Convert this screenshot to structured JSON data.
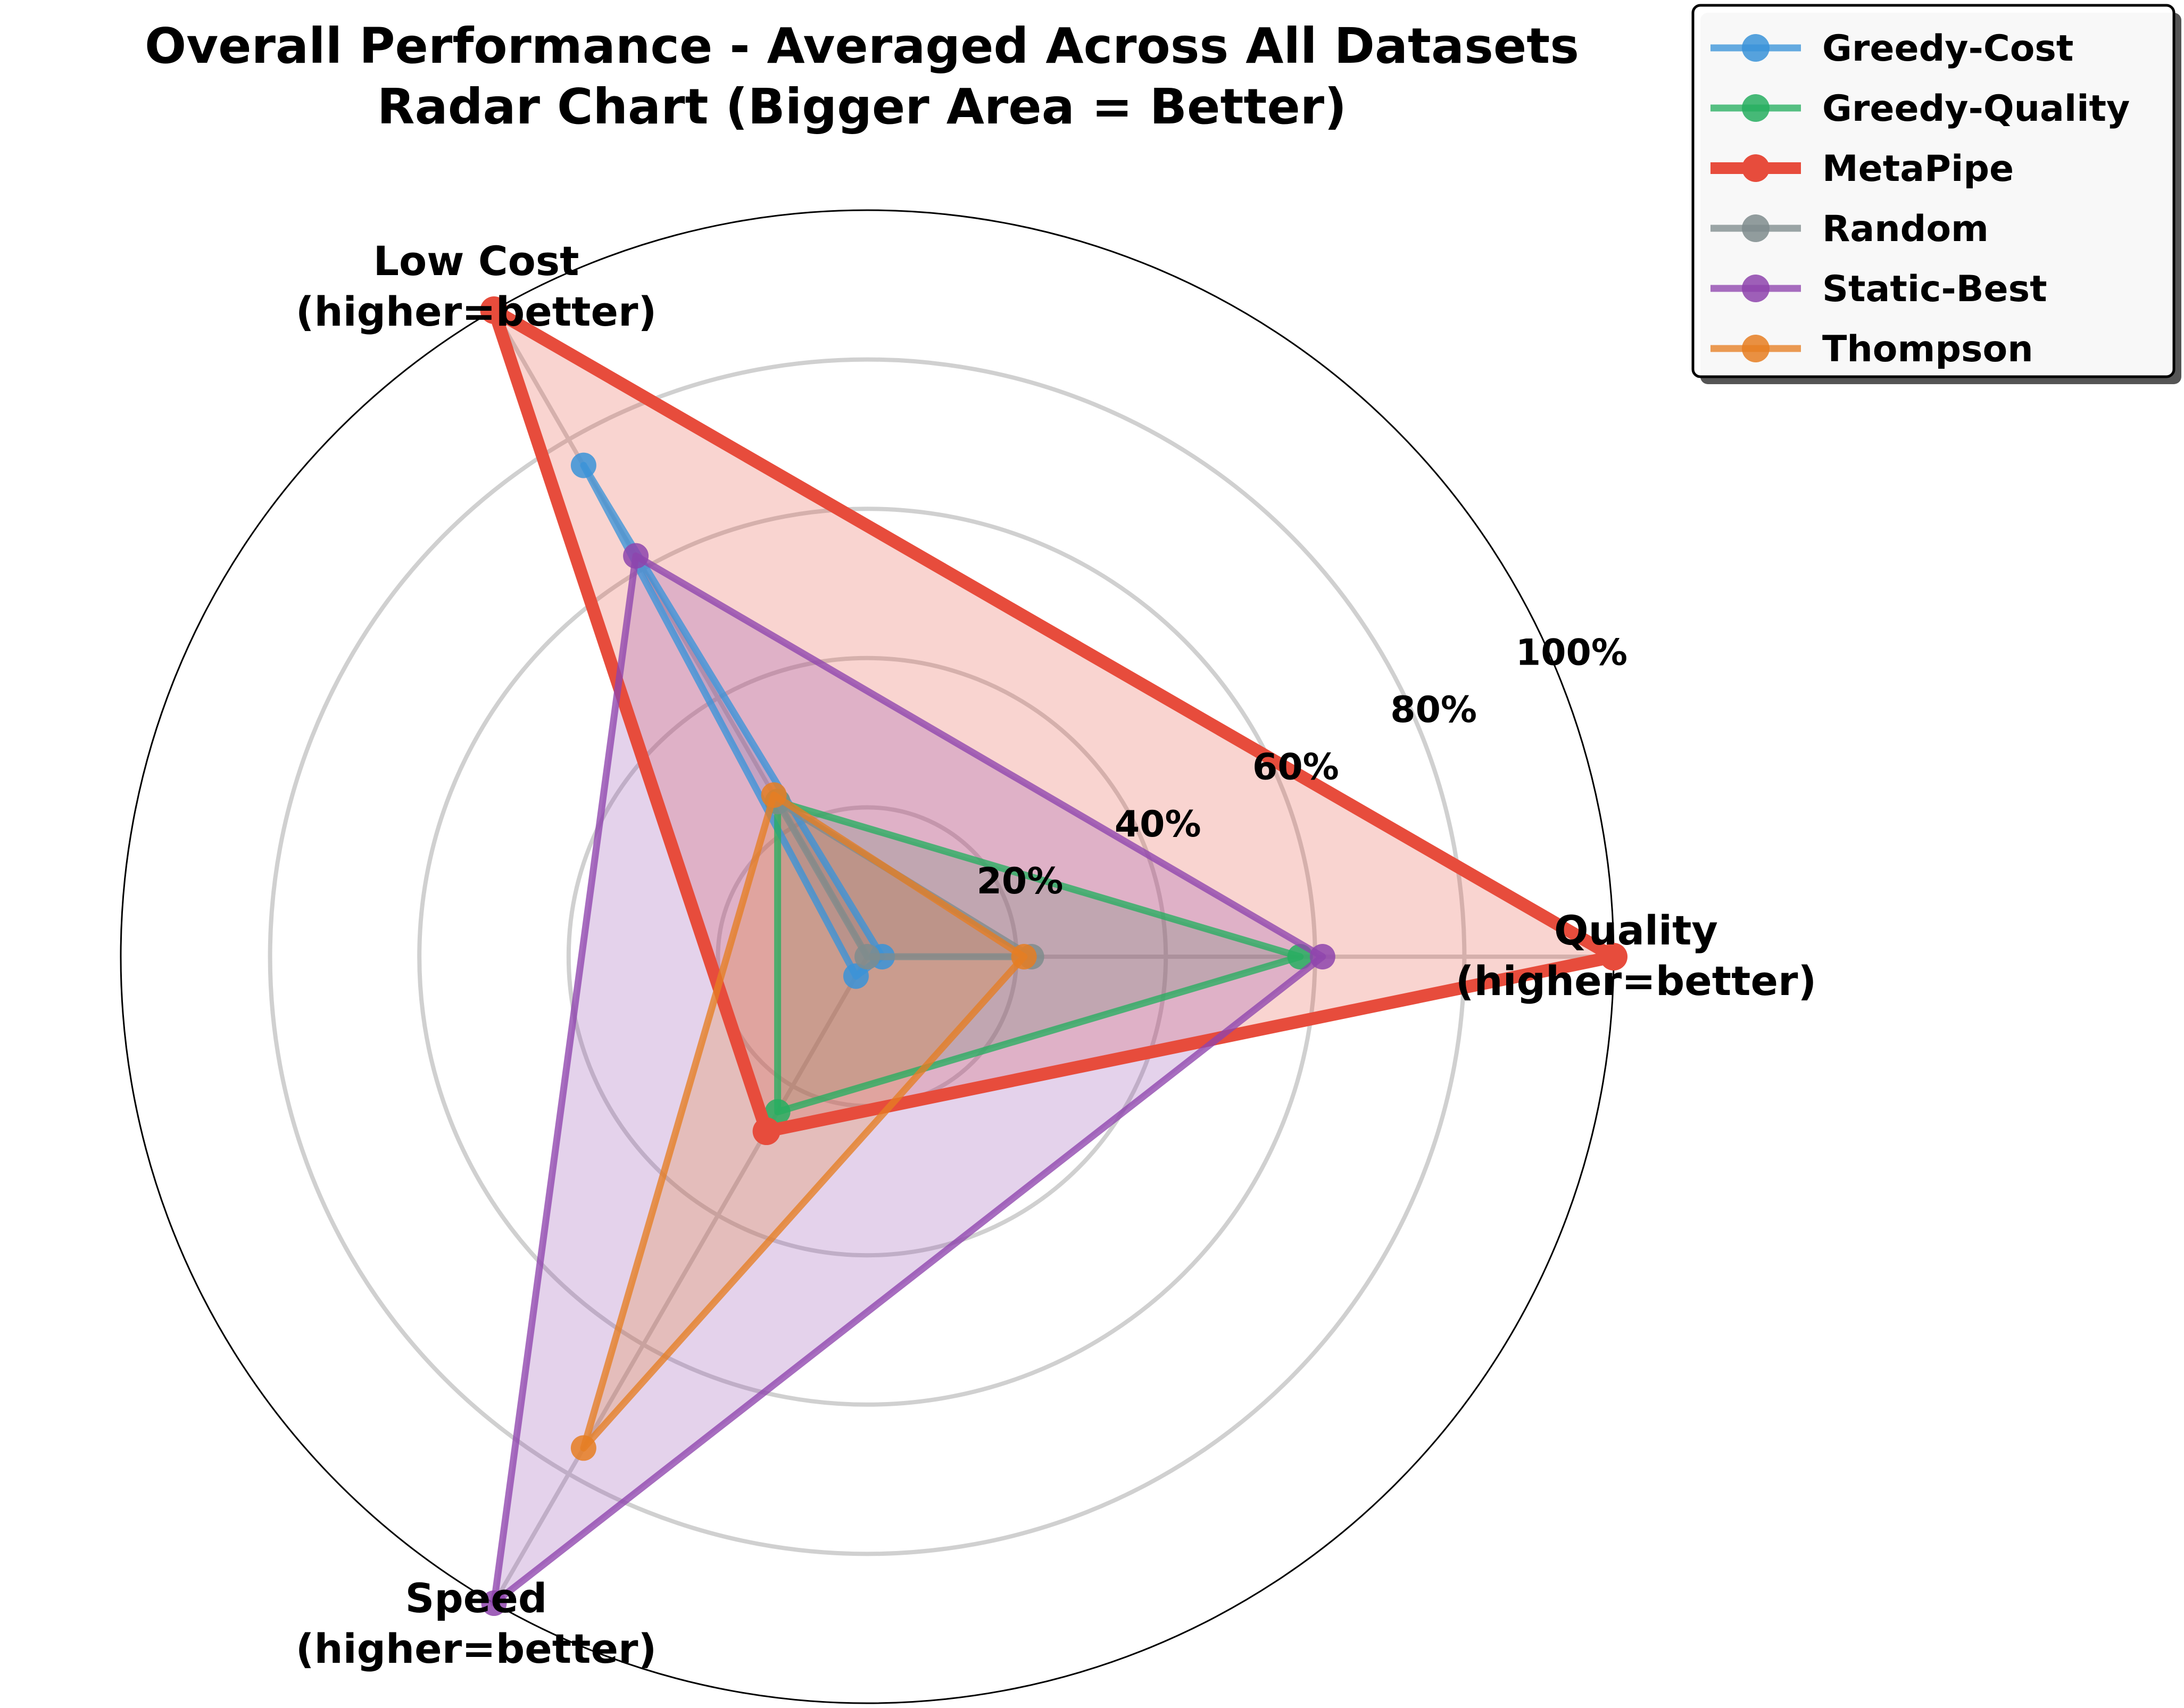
{
  "chart_data": {
    "type": "radar",
    "title": "Overall Performance - Averaged Across All Datasets",
    "subtitle": "Radar Chart (Bigger Area = Better)",
    "axes": [
      {
        "name": "Quality",
        "note": "(higher=better)"
      },
      {
        "name": "Low Cost",
        "note": "(higher=better)"
      },
      {
        "name": "Speed",
        "note": "(higher=better)"
      }
    ],
    "r_range": [
      0,
      100
    ],
    "r_ticks": [
      20,
      40,
      60,
      80,
      100
    ],
    "r_tick_labels": [
      "20%",
      "40%",
      "60%",
      "80%",
      "100%"
    ],
    "grid": true,
    "legend_position": "top-right",
    "series": [
      {
        "name": "Greedy-Cost",
        "color": "#3a93d8",
        "values": [
          2,
          76,
          3
        ]
      },
      {
        "name": "Greedy-Quality",
        "color": "#27ae60",
        "values": [
          58,
          24,
          24
        ]
      },
      {
        "name": "MetaPipe",
        "color": "#e74c3c",
        "values": [
          100,
          100,
          27
        ]
      },
      {
        "name": "Random",
        "color": "#7f8c8d",
        "values": [
          22,
          24,
          0
        ]
      },
      {
        "name": "Static-Best",
        "color": "#8e44ad",
        "values": [
          61,
          62,
          100
        ]
      },
      {
        "name": "Thompson",
        "color": "#e67e22",
        "values": [
          21,
          25,
          76
        ]
      }
    ]
  }
}
